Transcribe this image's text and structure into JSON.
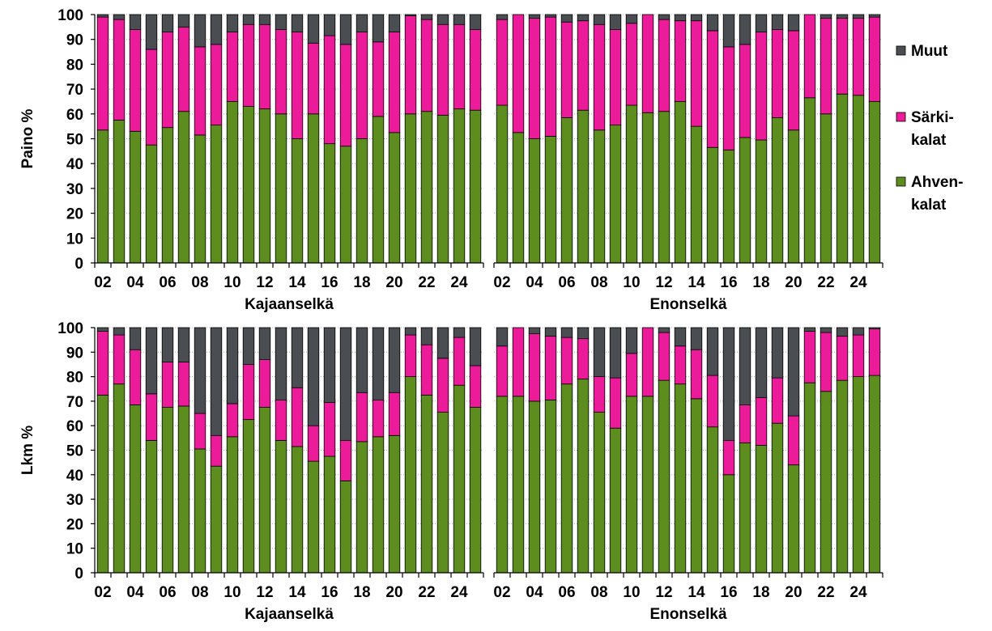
{
  "colors": {
    "muut": "#4a4d51",
    "sarki": "#ec1b99",
    "ahven": "#5d8d1e",
    "stroke": "#000000",
    "grid": "#b0b0b0"
  },
  "legend": [
    {
      "label": "Muut",
      "color": "#4a4d51"
    },
    {
      "label": "Särki-\nkalat",
      "color": "#ec1b99"
    },
    {
      "label": "Ahven-\nkalat",
      "color": "#5d8d1e"
    }
  ],
  "row_labels": [
    "Paino %",
    "Lkm %"
  ],
  "chart_data": [
    {
      "type": "bar",
      "stacked": true,
      "ylabel": "Paino %",
      "xlabel": "Kajaanselkä",
      "ylim": [
        0,
        100
      ],
      "yticks": [
        0,
        10,
        20,
        30,
        40,
        50,
        60,
        70,
        80,
        90,
        100
      ],
      "x": [
        "02",
        "03",
        "04",
        "05",
        "06",
        "07",
        "08",
        "09",
        "10",
        "11",
        "12",
        "13",
        "14",
        "15",
        "16",
        "17",
        "18",
        "19",
        "20",
        "21",
        "22",
        "23",
        "24",
        "25"
      ],
      "xtick_labels": [
        "02",
        "04",
        "06",
        "08",
        "10",
        "12",
        "14",
        "16",
        "18",
        "20",
        "22",
        "24"
      ],
      "series": [
        {
          "name": "Ahven-kalat",
          "values": [
            53.5,
            57.5,
            53,
            47.5,
            54.5,
            61,
            51.5,
            55.5,
            65,
            63,
            62,
            60,
            50,
            60,
            48,
            47,
            50,
            59,
            52.5,
            60,
            61,
            59.5,
            62,
            61.5
          ]
        },
        {
          "name": "Särki-kalat",
          "values": [
            45.5,
            40.5,
            41,
            38.5,
            38.5,
            34,
            35.5,
            32.5,
            28,
            33,
            34,
            34,
            43,
            28.5,
            43.5,
            41,
            43,
            30,
            40.5,
            39.5,
            37,
            36.5,
            34,
            32.5
          ]
        },
        {
          "name": "Muut",
          "values": [
            1,
            2,
            6,
            14,
            7,
            5,
            13,
            12,
            7,
            4,
            4,
            6,
            7,
            11.5,
            8.5,
            12,
            7,
            11,
            7,
            0.5,
            2,
            4,
            4,
            6
          ]
        }
      ]
    },
    {
      "type": "bar",
      "stacked": true,
      "ylabel": "Paino %",
      "xlabel": "Enonselkä",
      "ylim": [
        0,
        100
      ],
      "yticks": [
        0,
        10,
        20,
        30,
        40,
        50,
        60,
        70,
        80,
        90,
        100
      ],
      "x": [
        "02",
        "03",
        "04",
        "05",
        "06",
        "07",
        "08",
        "09",
        "10",
        "11",
        "12",
        "13",
        "14",
        "15",
        "16",
        "17",
        "18",
        "19",
        "20",
        "21",
        "22",
        "23",
        "24",
        "25"
      ],
      "xtick_labels": [
        "02",
        "04",
        "06",
        "08",
        "10",
        "12",
        "14",
        "16",
        "18",
        "20",
        "22",
        "24"
      ],
      "series": [
        {
          "name": "Ahven-kalat",
          "values": [
            63.5,
            52.5,
            50,
            51,
            58.5,
            61.5,
            53.5,
            55.5,
            63.5,
            60.5,
            61,
            65,
            55,
            46.5,
            45.5,
            50.5,
            49.5,
            58.5,
            53.5,
            66.5,
            60,
            68,
            67.5,
            65
          ]
        },
        {
          "name": "Särki-kalat",
          "values": [
            34.5,
            47.5,
            48.5,
            48,
            38.5,
            36,
            42.5,
            38.5,
            33,
            39.5,
            37,
            32.5,
            42.5,
            47,
            41.5,
            37.5,
            43.5,
            35.5,
            40,
            33.5,
            38.5,
            30.5,
            31,
            34
          ]
        },
        {
          "name": "Muut",
          "values": [
            2,
            0,
            1.5,
            1,
            3,
            2.5,
            4,
            6,
            3.5,
            0,
            2,
            2.5,
            2.5,
            6.5,
            13,
            12,
            7,
            6,
            6.5,
            0,
            1.5,
            1.5,
            1.5,
            1
          ]
        }
      ]
    },
    {
      "type": "bar",
      "stacked": true,
      "ylabel": "Lkm %",
      "xlabel": "Kajaanselkä",
      "ylim": [
        0,
        100
      ],
      "yticks": [
        0,
        10,
        20,
        30,
        40,
        50,
        60,
        70,
        80,
        90,
        100
      ],
      "x": [
        "02",
        "03",
        "04",
        "05",
        "06",
        "07",
        "08",
        "09",
        "10",
        "11",
        "12",
        "13",
        "14",
        "15",
        "16",
        "17",
        "18",
        "19",
        "20",
        "21",
        "22",
        "23",
        "24",
        "25"
      ],
      "xtick_labels": [
        "02",
        "04",
        "06",
        "08",
        "10",
        "12",
        "14",
        "16",
        "18",
        "20",
        "22",
        "24"
      ],
      "series": [
        {
          "name": "Ahven-kalat",
          "values": [
            72.5,
            77,
            68.5,
            54,
            67.5,
            68,
            50.5,
            43.5,
            55.5,
            62.5,
            67.5,
            54,
            51.5,
            45.5,
            47.5,
            37.5,
            53.5,
            55.5,
            56,
            80,
            72.5,
            65.5,
            76.5,
            67.5
          ]
        },
        {
          "name": "Särki-kalat",
          "values": [
            26,
            20,
            22.5,
            19,
            18.5,
            18,
            14.5,
            12.5,
            13.5,
            22.5,
            19.5,
            16.5,
            24,
            14.5,
            22,
            16.5,
            20,
            15,
            17.5,
            17,
            20.5,
            22,
            19.5,
            17
          ]
        },
        {
          "name": "Muut",
          "values": [
            1.5,
            3,
            9,
            27,
            14,
            14,
            35,
            44,
            31,
            15,
            13,
            29.5,
            24.5,
            40,
            30.5,
            46,
            26.5,
            29.5,
            26.5,
            3,
            7,
            12.5,
            4,
            15.5
          ]
        }
      ]
    },
    {
      "type": "bar",
      "stacked": true,
      "ylabel": "Lkm %",
      "xlabel": "Enonselkä",
      "ylim": [
        0,
        100
      ],
      "yticks": [
        0,
        10,
        20,
        30,
        40,
        50,
        60,
        70,
        80,
        90,
        100
      ],
      "x": [
        "02",
        "03",
        "04",
        "05",
        "06",
        "07",
        "08",
        "09",
        "10",
        "11",
        "12",
        "13",
        "14",
        "15",
        "16",
        "17",
        "18",
        "19",
        "20",
        "21",
        "22",
        "23",
        "24",
        "25"
      ],
      "xtick_labels": [
        "02",
        "04",
        "06",
        "08",
        "10",
        "12",
        "14",
        "16",
        "18",
        "20",
        "22",
        "24"
      ],
      "series": [
        {
          "name": "Ahven-kalat",
          "values": [
            72,
            72,
            70,
            70.5,
            77,
            79,
            65.5,
            59,
            72,
            72,
            78.5,
            77,
            71,
            59.5,
            40,
            53,
            52,
            61,
            44,
            77.5,
            74,
            78.5,
            80,
            80.5
          ]
        },
        {
          "name": "Särki-kalat",
          "values": [
            20.5,
            28,
            27.5,
            26,
            19,
            16.5,
            14.5,
            20.5,
            17.5,
            28,
            19.5,
            15.5,
            20,
            21,
            14,
            15.5,
            19.5,
            18.5,
            20,
            21,
            24,
            18,
            17,
            19
          ]
        },
        {
          "name": "Muut",
          "values": [
            7.5,
            0,
            2.5,
            3.5,
            4,
            4.5,
            20,
            20.5,
            10.5,
            0,
            2,
            7.5,
            9,
            19.5,
            46,
            31.5,
            28.5,
            20.5,
            36,
            1.5,
            2,
            3.5,
            3,
            0.5
          ]
        }
      ]
    }
  ]
}
